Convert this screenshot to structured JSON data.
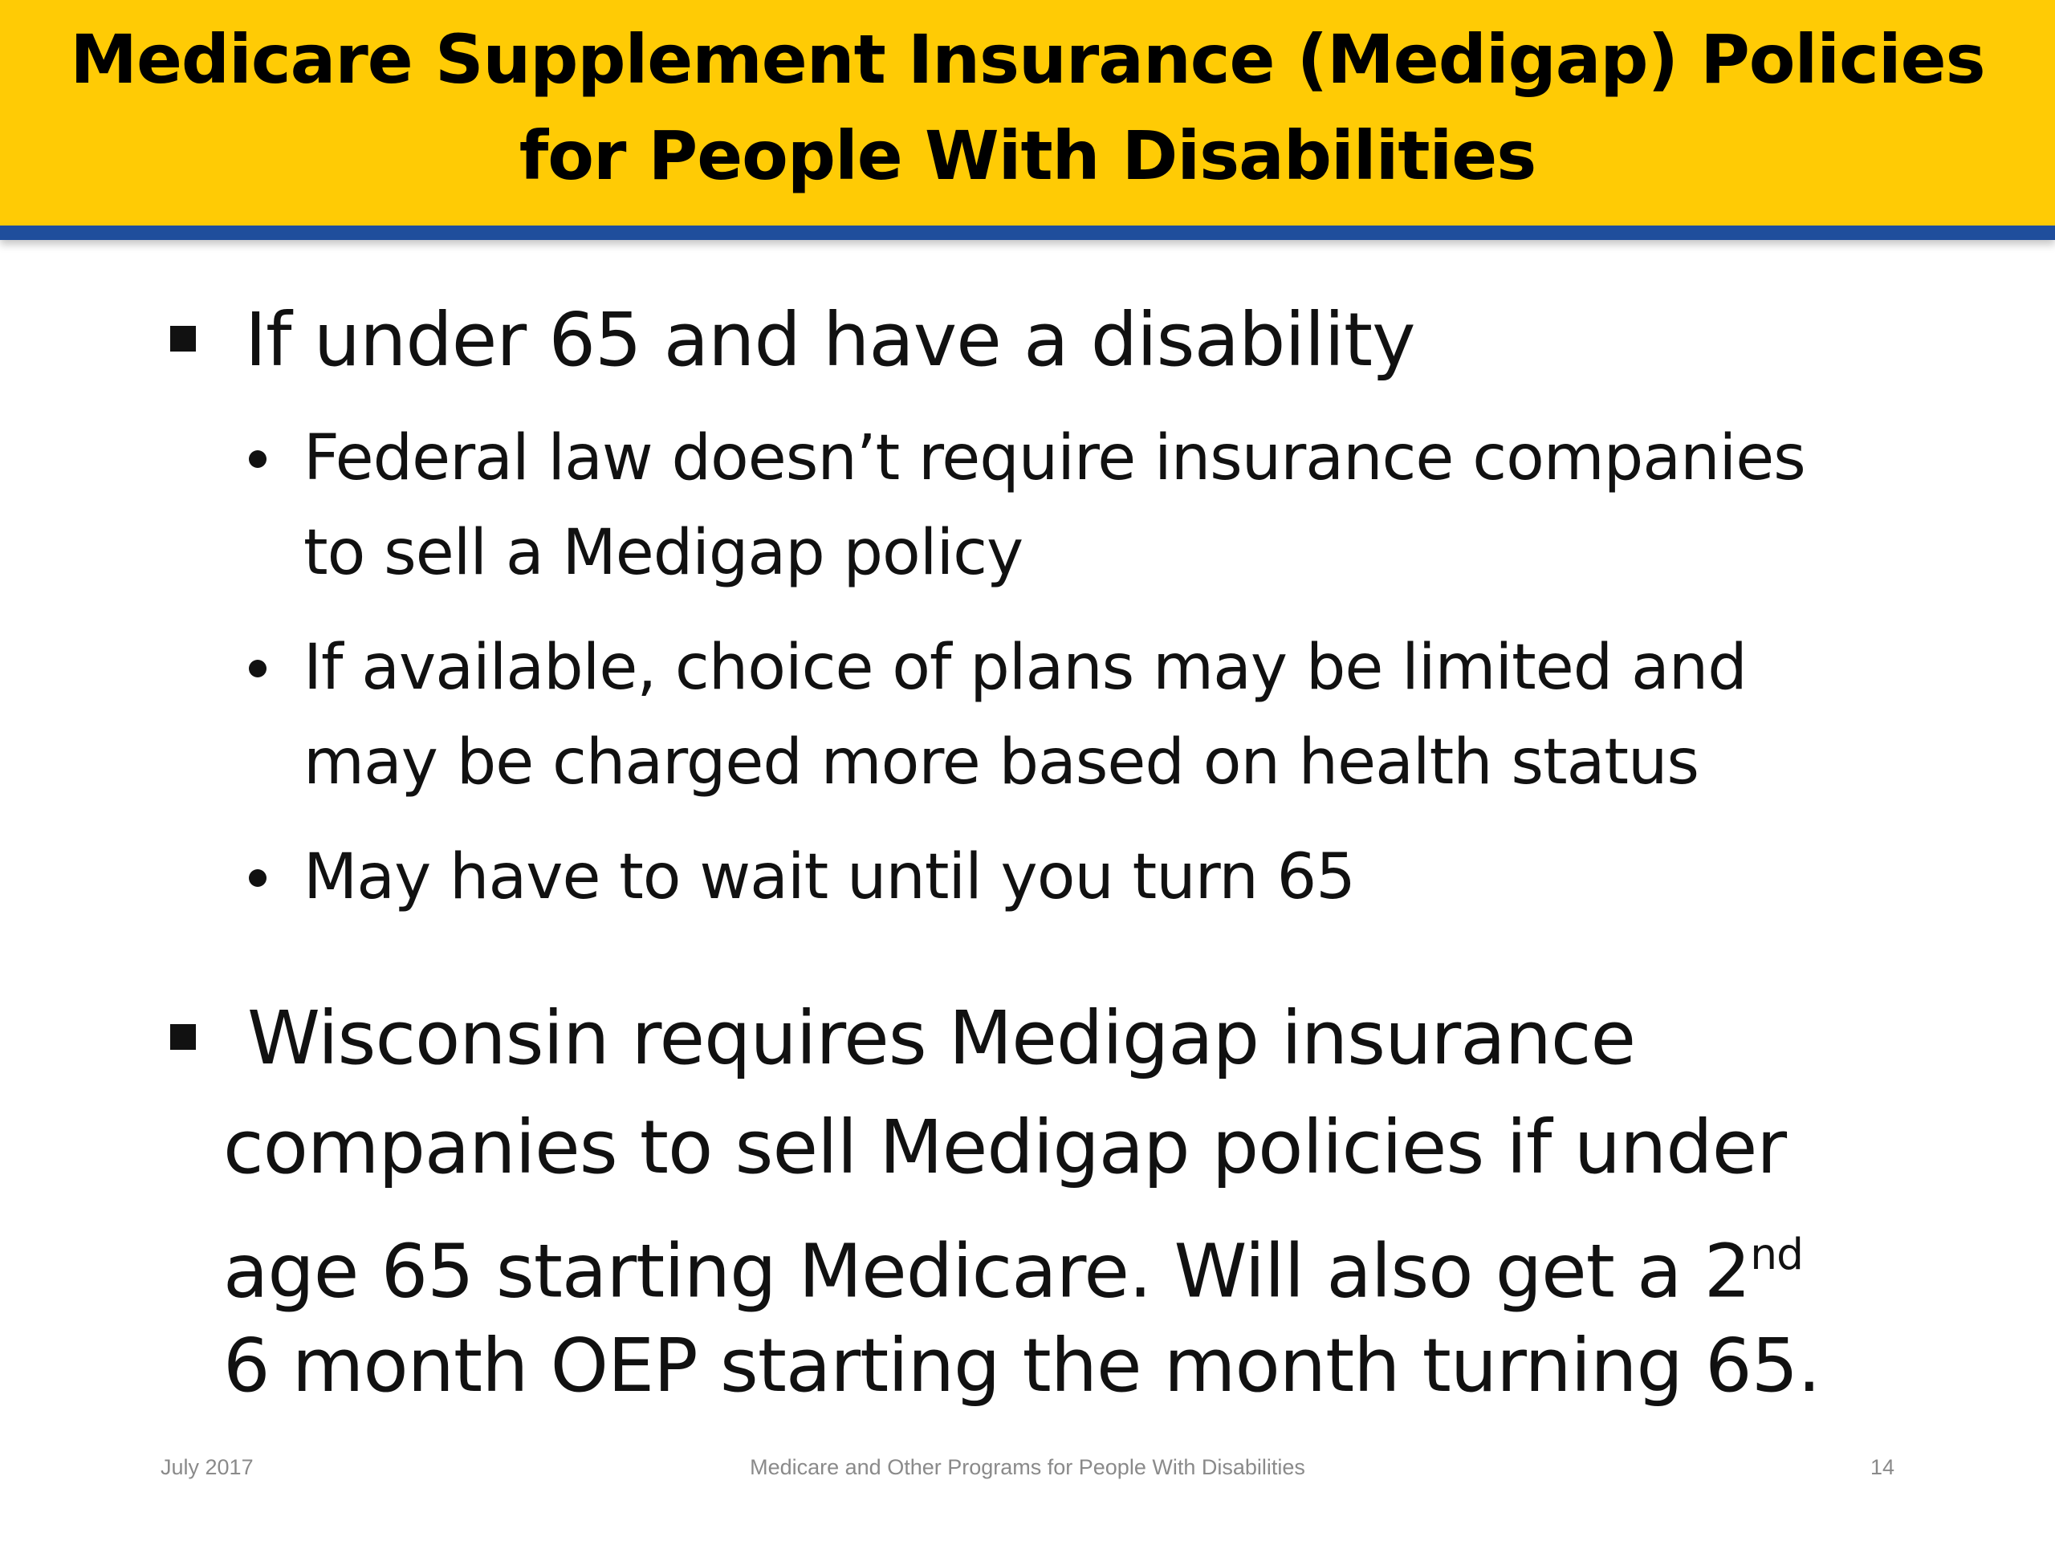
{
  "slide": {
    "title_line1": "Medicare Supplement Insurance (Medigap) Policies",
    "title_line2": "for People With Disabilities",
    "bullet1": {
      "text": "If under 65 and have a disability",
      "sub": [
        {
          "line1": "Federal law doesn’t require insurance companies",
          "line2": "to sell a Medigap policy"
        },
        {
          "line1": "If available, choice of plans may be limited and",
          "line2": "may be charged more based on health status"
        },
        {
          "line1": "May have to wait until you turn 65"
        }
      ]
    },
    "bullet2": {
      "line1": "Wisconsin requires Medigap insurance",
      "line2": "companies to sell Medigap policies if  under",
      "line3_pre": "age 65 starting Medicare.  Will also get a 2",
      "line3_sup": "nd",
      "line4": "6 month OEP starting the month turning 65."
    },
    "footer": {
      "date": "July 2017",
      "center": "Medicare and Other Programs for People With Disabilities",
      "page": "14"
    }
  }
}
